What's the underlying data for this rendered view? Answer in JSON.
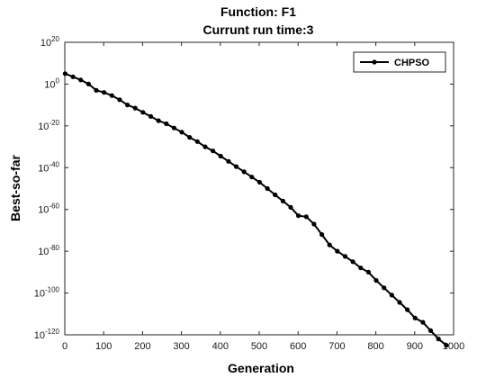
{
  "chart_data": {
    "type": "line",
    "title": "Function: F1",
    "subtitle": "Currunt run time:3",
    "xlabel": "Generation",
    "ylabel": "Best-so-far",
    "xlim": [
      0,
      1000
    ],
    "ylim_log10": [
      -120,
      20
    ],
    "yscale": "log",
    "xticks": [
      "0",
      "100",
      "200",
      "300",
      "400",
      "500",
      "600",
      "700",
      "800",
      "900",
      "1000"
    ],
    "yticks": [
      {
        "base": "10",
        "exp": "20"
      },
      {
        "base": "10",
        "exp": "0"
      },
      {
        "base": "10",
        "exp": "-20"
      },
      {
        "base": "10",
        "exp": "-40"
      },
      {
        "base": "10",
        "exp": "-60"
      },
      {
        "base": "10",
        "exp": "-80"
      },
      {
        "base": "10",
        "exp": "-100"
      },
      {
        "base": "10",
        "exp": "-120"
      }
    ],
    "grid": false,
    "legend": "top-right",
    "series": [
      {
        "name": "CHPSO",
        "color": "#000000",
        "marker": "dot",
        "x": [
          1,
          21,
          41,
          61,
          81,
          101,
          121,
          141,
          161,
          181,
          201,
          221,
          241,
          261,
          281,
          301,
          321,
          341,
          361,
          381,
          401,
          421,
          441,
          461,
          481,
          501,
          521,
          541,
          561,
          581,
          601,
          621,
          641,
          661,
          681,
          701,
          721,
          741,
          761,
          781,
          801,
          821,
          841,
          861,
          881,
          901,
          921,
          941,
          961,
          981
        ],
        "log10_y": [
          5,
          3.5,
          2,
          0,
          -3,
          -4,
          -5.5,
          -7.5,
          -10,
          -11.5,
          -13.5,
          -15.5,
          -17.5,
          -19,
          -21,
          -23,
          -25.5,
          -27.5,
          -30,
          -32,
          -34.5,
          -37,
          -39.5,
          -42,
          -44.5,
          -47,
          -50,
          -53,
          -56,
          -59,
          -63,
          -63.5,
          -67,
          -72,
          -77,
          -80,
          -82.5,
          -85,
          -88,
          -90,
          -94,
          -97.5,
          -101,
          -104.5,
          -108,
          -112,
          -114,
          -118,
          -122,
          -125
        ]
      }
    ]
  }
}
